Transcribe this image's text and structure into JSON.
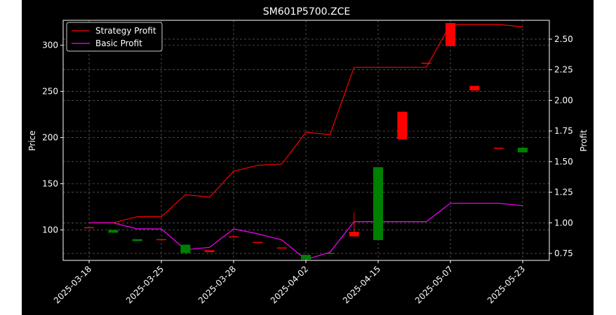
{
  "chart_data": {
    "type": "candlestick+line",
    "title": "SM601P5700.ZCE",
    "xlabel": "",
    "ylabel_left": "Price",
    "ylabel_right": "Profit",
    "x_tick_labels": [
      "2025-03-18",
      "2025-03-25",
      "2025-03-28",
      "2025-04-02",
      "2025-04-15",
      "2025-05-07",
      "2025-05-23"
    ],
    "x_tick_positions": [
      0,
      3,
      6,
      9,
      12,
      15,
      18
    ],
    "left_axis": {
      "ylim": [
        67,
        327
      ],
      "ticks": [
        100,
        150,
        200,
        250,
        300
      ]
    },
    "right_axis": {
      "ylim": [
        0.693,
        2.654
      ],
      "ticks": [
        0.75,
        1.0,
        1.25,
        1.5,
        1.75,
        2.0,
        2.25,
        2.5
      ]
    },
    "grid": true,
    "legend_position": "top-left",
    "candles": [
      {
        "i": 0,
        "open": 103,
        "high": 103,
        "low": 102,
        "close": 103
      },
      {
        "i": 1,
        "open": 100,
        "high": 100,
        "low": 97,
        "close": 97
      },
      {
        "i": 2,
        "open": 90,
        "high": 90,
        "low": 88,
        "close": 88
      },
      {
        "i": 3,
        "open": 89,
        "high": 89,
        "low": 89,
        "close": 90
      },
      {
        "i": 4,
        "open": 84,
        "high": 84,
        "low": 75,
        "close": 75
      },
      {
        "i": 5,
        "open": 76,
        "high": 78,
        "low": 76,
        "close": 78
      },
      {
        "i": 6,
        "open": 92,
        "high": 93,
        "low": 92,
        "close": 93
      },
      {
        "i": 7,
        "open": 87,
        "high": 87,
        "low": 87,
        "close": 87
      },
      {
        "i": 8,
        "open": 81,
        "high": 81,
        "low": 81,
        "close": 81
      },
      {
        "i": 9,
        "open": 73,
        "high": 73,
        "low": 68,
        "close": 68
      },
      {
        "i": 10,
        "open": 75,
        "high": 75,
        "low": 74,
        "close": 74
      },
      {
        "i": 11,
        "open": 93,
        "high": 119,
        "low": 93,
        "close": 98
      },
      {
        "i": 12,
        "open": 168,
        "high": 168,
        "low": 89,
        "close": 89
      },
      {
        "i": 13,
        "open": 198,
        "high": 228,
        "low": 198,
        "close": 228
      },
      {
        "i": 14,
        "open": 281,
        "high": 281,
        "low": 281,
        "close": 281
      },
      {
        "i": 15,
        "open": 299,
        "high": 324,
        "low": 299,
        "close": 324
      },
      {
        "i": 16,
        "open": 251,
        "high": 256,
        "low": 251,
        "close": 256
      },
      {
        "i": 17,
        "open": 189,
        "high": 189,
        "low": 189,
        "close": 189
      },
      {
        "i": 18,
        "open": 189,
        "high": 189,
        "low": 184,
        "close": 184
      }
    ],
    "candle_colors": {
      "up": "#ff0000",
      "down": "#008000"
    },
    "series": [
      {
        "name": "Strategy Profit",
        "color": "#ff0000",
        "axis": "right",
        "values": [
          1.0,
          1.0,
          1.05,
          1.05,
          1.23,
          1.21,
          1.42,
          1.47,
          1.48,
          1.74,
          1.72,
          2.27,
          2.27,
          2.27,
          2.27,
          2.62,
          2.62,
          2.62,
          2.6
        ]
      },
      {
        "name": "Basic Profit",
        "color": "#ff00ff",
        "axis": "right",
        "values": [
          1.0,
          1.0,
          0.95,
          0.95,
          0.78,
          0.8,
          0.95,
          0.91,
          0.86,
          0.7,
          0.76,
          1.01,
          1.01,
          1.01,
          1.01,
          1.16,
          1.16,
          1.16,
          1.14
        ]
      }
    ]
  }
}
